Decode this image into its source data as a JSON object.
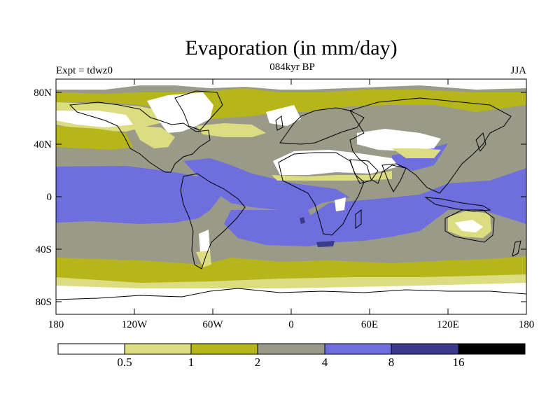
{
  "header": {
    "title": "Evaporation (in mm/day)",
    "subtitle": "084kyr BP",
    "left_label": "Expt = tdwz0",
    "right_label": "JJA"
  },
  "map": {
    "x_ticks": [
      "180",
      "120W",
      "60W",
      "0",
      "60E",
      "120E",
      "180"
    ],
    "y_ticks": [
      "80N",
      "40N",
      "0",
      "40S",
      "80S"
    ]
  },
  "legend": {
    "bins": [
      {
        "color": "#ffffff"
      },
      {
        "color": "#dcdc80"
      },
      {
        "color": "#b6b61a"
      },
      {
        "color": "#9a9a88"
      },
      {
        "color": "#6e6ede"
      },
      {
        "color": "#3a3a8a"
      },
      {
        "color": "#000000"
      }
    ],
    "labels": [
      "0.5",
      "1",
      "2",
      "4",
      "8",
      "16"
    ]
  },
  "colors": {
    "very_low": "#ffffff",
    "low": "#dcdc80",
    "mid_low": "#b6b61a",
    "mid": "#9a9a88",
    "high": "#6e6ede",
    "very_high": "#3a3a8a"
  }
}
